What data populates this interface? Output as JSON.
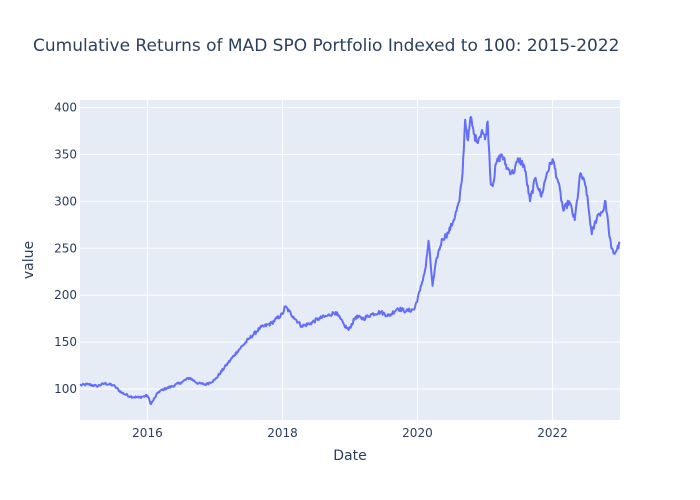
{
  "chart_data": {
    "type": "line",
    "title": "Cumulative Returns of MAD SPO Portfolio Indexed to 100: 2015-2022",
    "xlabel": "Date",
    "ylabel": "value",
    "xlim": [
      "2015-01-01",
      "2023-01-01"
    ],
    "ylim": [
      67,
      408
    ],
    "x_ticks": [
      "2016",
      "2018",
      "2020",
      "2022"
    ],
    "y_ticks": [
      100,
      150,
      200,
      250,
      300,
      350,
      400
    ],
    "grid": true,
    "background": "#e5ecf6",
    "line_color": "#636efa",
    "series": [
      {
        "x": [
          "2015-01-01",
          "2015-02-15",
          "2015-04-01",
          "2015-05-15",
          "2015-07-01",
          "2015-08-15",
          "2015-10-01",
          "2015-11-15",
          "2016-01-01",
          "2016-01-20",
          "2016-03-01",
          "2016-04-01",
          "2016-05-15",
          "2016-07-01",
          "2016-08-15",
          "2016-10-01",
          "2016-11-15",
          "2017-01-01",
          "2017-03-01",
          "2017-05-01",
          "2017-07-01",
          "2017-09-01",
          "2017-11-01",
          "2018-01-01",
          "2018-01-15",
          "2018-03-01",
          "2018-04-15",
          "2018-06-01",
          "2018-07-15",
          "2018-09-01",
          "2018-10-15",
          "2018-12-01",
          "2018-12-25",
          "2019-02-01",
          "2019-03-15",
          "2019-05-01",
          "2019-06-15",
          "2019-08-01",
          "2019-09-15",
          "2019-11-01",
          "2019-12-15",
          "2020-01-15",
          "2020-02-15",
          "2020-03-01",
          "2020-03-23",
          "2020-04-15",
          "2020-05-15",
          "2020-06-15",
          "2020-07-15",
          "2020-08-15",
          "2020-09-01",
          "2020-09-15",
          "2020-10-01",
          "2020-10-15",
          "2020-11-01",
          "2020-11-15",
          "2020-12-01",
          "2020-12-15",
          "2021-01-01",
          "2021-01-15",
          "2021-02-01",
          "2021-02-15",
          "2021-03-01",
          "2021-04-01",
          "2021-05-01",
          "2021-06-01",
          "2021-07-01",
          "2021-08-01",
          "2021-09-01",
          "2021-10-01",
          "2021-11-01",
          "2021-12-01",
          "2022-01-01",
          "2022-02-01",
          "2022-03-01",
          "2022-04-01",
          "2022-05-01",
          "2022-06-01",
          "2022-07-01",
          "2022-08-01",
          "2022-09-01",
          "2022-10-01",
          "2022-10-15",
          "2022-11-01",
          "2022-11-15",
          "2022-12-01",
          "2022-12-31"
        ],
        "y": [
          104,
          105,
          103,
          106,
          104,
          96,
          92,
          91,
          93,
          84,
          97,
          100,
          103,
          107,
          112,
          106,
          105,
          110,
          125,
          140,
          153,
          165,
          170,
          180,
          188,
          177,
          167,
          170,
          175,
          178,
          182,
          168,
          163,
          177,
          175,
          180,
          182,
          178,
          186,
          183,
          185,
          205,
          230,
          258,
          210,
          240,
          260,
          266,
          280,
          300,
          330,
          387,
          365,
          390,
          372,
          365,
          368,
          376,
          366,
          385,
          318,
          320,
          340,
          350,
          335,
          330,
          345,
          338,
          300,
          325,
          305,
          330,
          345,
          320,
          290,
          300,
          280,
          330,
          315,
          265,
          285,
          290,
          300,
          270,
          250,
          244,
          255
        ]
      }
    ]
  }
}
